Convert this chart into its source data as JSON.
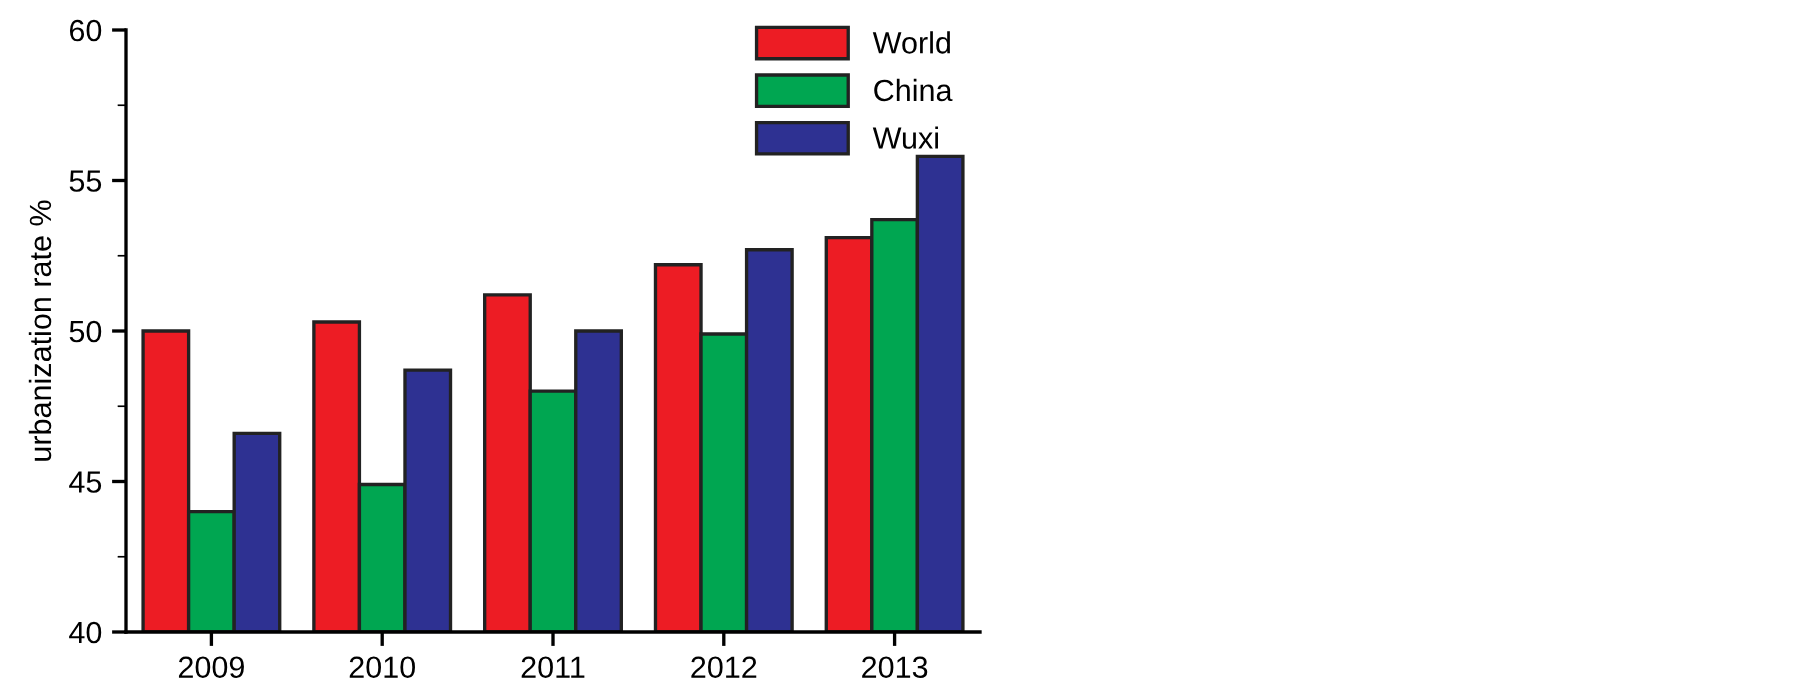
{
  "chart_data": {
    "type": "bar",
    "ylabel": "urbanization rate %",
    "categories": [
      "2009",
      "2010",
      "2011",
      "2012",
      "2013"
    ],
    "series": [
      {
        "name": "World",
        "color": "#ed1c24",
        "values": [
          50.0,
          50.3,
          51.2,
          52.2,
          53.1
        ]
      },
      {
        "name": "China",
        "color": "#00a651",
        "values": [
          44.0,
          44.9,
          48.0,
          49.9,
          53.7
        ]
      },
      {
        "name": "Wuxi",
        "color": "#2e3192",
        "values": [
          46.6,
          48.7,
          50.0,
          52.7,
          55.8
        ]
      }
    ],
    "ylim": [
      40,
      60
    ],
    "yticks": [
      40,
      45,
      50,
      55,
      60
    ],
    "grid": false,
    "legend": "top right"
  }
}
